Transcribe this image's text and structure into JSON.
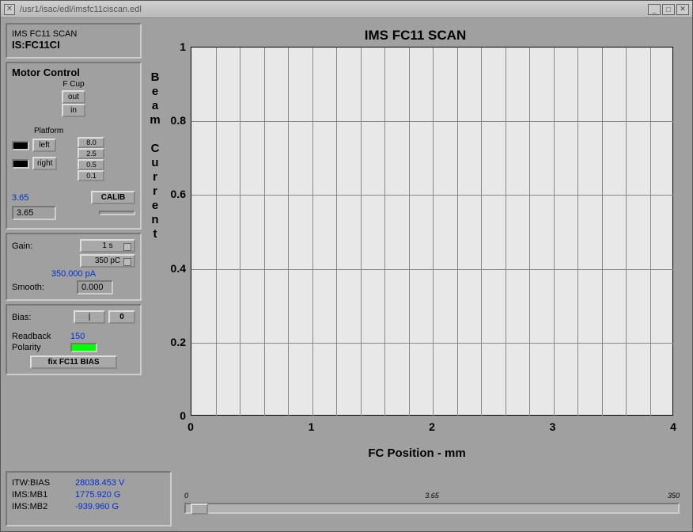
{
  "window": {
    "title": "/usr1/isac/edl/imsfc11ciscan.edl"
  },
  "header": {
    "name": "IMS FC11 SCAN",
    "device": "IS:FC11CI"
  },
  "motor": {
    "title": "Motor Control",
    "fcup_label": "F Cup",
    "out": "out",
    "in": "in",
    "platform_label": "Platform",
    "left": "left",
    "right": "right",
    "steps": [
      "8.0",
      "2.5",
      "0.5",
      "0.1"
    ],
    "calib": "CALIB",
    "pos_blue": "3.65",
    "pos_box": "3.65"
  },
  "gain": {
    "label": "Gain:",
    "time": "1 s",
    "range": "350 pC",
    "readback": "350.000 pA",
    "smooth_label": "Smooth:",
    "smooth_val": "0.000"
  },
  "bias": {
    "label": "Bias:",
    "zero": "0",
    "bar": "|",
    "readback_label": "Readback",
    "readback": "150",
    "polarity_label": "Polarity",
    "fix": "fix FC11 BIAS"
  },
  "readings": {
    "r1_label": "ITW:BIAS",
    "r1_val": "28038.453 V",
    "r2_label": "IMS:MB1",
    "r2_val": "1775.920 G",
    "r3_label": "IMS:MB2",
    "r3_val": "-939.960 G"
  },
  "chart": {
    "title": "IMS FC11 SCAN",
    "xaxis": "FC Position - mm",
    "yaxis": "Beam Current",
    "xlim": [
      0,
      4
    ],
    "xticks": [
      0,
      1,
      2,
      3,
      4
    ],
    "ylim": [
      0,
      1
    ],
    "yticks": [
      0,
      0.2,
      0.4,
      0.6,
      0.8,
      1
    ],
    "bg": "#e8e8e8",
    "grid": "#888888",
    "x_minor": 20
  },
  "slider": {
    "min": "0",
    "cur": "3.65",
    "max": "350",
    "pos_pct": 1.0
  }
}
